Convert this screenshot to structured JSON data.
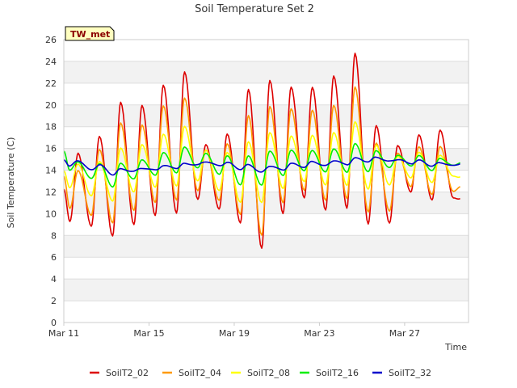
{
  "chart_data": {
    "type": "line",
    "title": "Soil Temperature Set 2",
    "badge": "TW_met",
    "xlabel": "Time",
    "ylabel": "Soil Temperature (C)",
    "ylim": [
      0,
      26
    ],
    "yticks": [
      0,
      2,
      4,
      6,
      8,
      10,
      12,
      14,
      16,
      18,
      20,
      22,
      24,
      26
    ],
    "xlim": [
      "2024-03-11",
      "2024-03-30"
    ],
    "xticks": [
      {
        "date": "2024-03-11",
        "label": "Mar 11"
      },
      {
        "date": "2024-03-15",
        "label": "Mar 15"
      },
      {
        "date": "2024-03-19",
        "label": "Mar 19"
      },
      {
        "date": "2024-03-23",
        "label": "Mar 23"
      },
      {
        "date": "2024-03-27",
        "label": "Mar 27"
      }
    ],
    "grid": "horizontal bands",
    "legend_position": "bottom",
    "series": [
      {
        "name": "SoilT2_02",
        "color": "#dd0000",
        "min": [
          9.3,
          8.8,
          8.0,
          9.0,
          9.8,
          10.1,
          11.3,
          10.4,
          9.2,
          6.8,
          10.0,
          11.5,
          10.3,
          10.5,
          9.1,
          9.1,
          12.0,
          11.3,
          11.4
        ],
        "max": [
          15.6,
          17.1,
          20.2,
          20.0,
          21.8,
          23.0,
          16.4,
          17.3,
          21.4,
          22.3,
          21.6,
          21.6,
          22.7,
          24.7,
          18.1,
          16.3,
          17.2,
          17.7
        ],
        "start": 12.2,
        "end": 11.4
      },
      {
        "name": "SoilT2_04",
        "color": "#ff9900",
        "min": [
          10.5,
          9.8,
          9.2,
          10.3,
          11.0,
          11.3,
          12.1,
          11.2,
          10.0,
          8.0,
          11.0,
          12.2,
          11.2,
          11.4,
          10.2,
          10.2,
          12.5,
          11.8,
          12.0
        ],
        "max": [
          14.0,
          15.9,
          18.3,
          18.2,
          19.9,
          20.6,
          15.9,
          16.4,
          19.0,
          19.9,
          19.6,
          19.5,
          20.0,
          21.6,
          16.5,
          15.6,
          16.1,
          16.2
        ],
        "start": 13.4,
        "end": 12.5
      },
      {
        "name": "SoilT2_08",
        "color": "#ffff00",
        "min": [
          12.4,
          11.6,
          11.2,
          12.0,
          12.4,
          12.6,
          13.0,
          12.1,
          11.1,
          11.0,
          12.3,
          13.0,
          12.6,
          12.6,
          12.3,
          12.6,
          13.3,
          12.9,
          13.4
        ],
        "max": [
          14.6,
          14.8,
          16.0,
          16.4,
          17.3,
          18.0,
          15.9,
          15.6,
          16.6,
          17.5,
          17.1,
          17.2,
          17.5,
          18.4,
          16.3,
          15.3,
          15.6,
          15.4
        ],
        "start": 13.9,
        "end": 13.4
      },
      {
        "name": "SoilT2_16",
        "color": "#00ee00",
        "min": [
          14.0,
          13.2,
          12.5,
          13.2,
          13.5,
          13.8,
          14.2,
          13.6,
          12.7,
          12.6,
          13.5,
          14.0,
          13.8,
          13.8,
          13.9,
          14.2,
          14.4,
          14.0,
          14.4
        ],
        "max": [
          14.8,
          14.6,
          14.6,
          15.0,
          15.6,
          16.1,
          15.6,
          15.3,
          15.3,
          15.8,
          15.8,
          15.8,
          16.0,
          16.4,
          15.8,
          15.4,
          15.3,
          15.1
        ],
        "start": 15.7,
        "end": 14.7
      },
      {
        "name": "SoilT2_32",
        "color": "#0000cc",
        "min": [
          14.4,
          14.0,
          13.6,
          13.9,
          14.0,
          14.2,
          14.5,
          14.4,
          14.1,
          13.8,
          14.0,
          14.3,
          14.4,
          14.5,
          14.8,
          14.8,
          14.6,
          14.4,
          14.4
        ],
        "max": [
          14.9,
          14.5,
          14.1,
          14.2,
          14.4,
          14.6,
          14.8,
          14.7,
          14.5,
          14.4,
          14.6,
          14.8,
          14.9,
          15.1,
          15.2,
          15.0,
          14.9,
          14.7
        ],
        "start": 14.9,
        "end": 14.6
      }
    ]
  }
}
